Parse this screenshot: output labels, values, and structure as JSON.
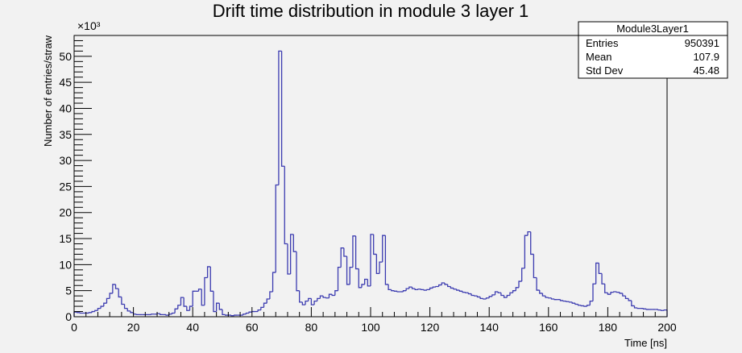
{
  "chart_data": {
    "type": "bar",
    "title": "Drift time distribution in module 3 layer 1",
    "xlabel": "Time [ns]",
    "ylabel": "Number of entries/straw",
    "y_multiplier_label": "×10³",
    "xlim": [
      0,
      200
    ],
    "ylim": [
      0,
      54
    ],
    "x_ticks": [
      0,
      20,
      40,
      60,
      80,
      100,
      120,
      140,
      160,
      180,
      200
    ],
    "y_ticks": [
      0,
      5,
      10,
      15,
      20,
      25,
      30,
      35,
      40,
      45,
      50
    ],
    "bin_width": 1,
    "bin_start": 0,
    "legend_position": "top-right",
    "series": [
      {
        "values": [
          0.9,
          0.8,
          0.7,
          0.7,
          0.7,
          0.8,
          1.0,
          1.2,
          1.6,
          2.0,
          2.6,
          3.5,
          4.5,
          6.2,
          5.4,
          3.8,
          2.4,
          1.6,
          1.1,
          0.8,
          0.5,
          0.4,
          0.4,
          0.4,
          0.4,
          0.4,
          0.5,
          0.5,
          0.6,
          0.4,
          0.4,
          0.3,
          0.5,
          0.7,
          1.5,
          2.2,
          3.7,
          2.0,
          1.2,
          2.0,
          4.9,
          4.9,
          5.3,
          2.2,
          7.5,
          9.6,
          4.9,
          1.0,
          2.6,
          1.4,
          0.4,
          0.3,
          0.3,
          0.2,
          0.3,
          0.3,
          0.3,
          0.5,
          0.7,
          0.9,
          1.0,
          1.0,
          1.3,
          1.8,
          2.6,
          3.4,
          4.8,
          8.5,
          25.3,
          51.0,
          28.9,
          14.0,
          8.2,
          15.8,
          12.5,
          5.0,
          2.8,
          2.3,
          3.0,
          3.5,
          2.3,
          3.0,
          3.5,
          4.0,
          3.7,
          3.6,
          4.3,
          4.1,
          5.0,
          9.5,
          13.2,
          11.6,
          6.2,
          9.5,
          15.5,
          9.2,
          5.6,
          6.2,
          7.2,
          5.9,
          15.8,
          12.0,
          8.3,
          10.5,
          15.6,
          6.2,
          5.2,
          5.0,
          4.9,
          4.8,
          4.8,
          5.0,
          5.4,
          5.7,
          5.4,
          5.2,
          5.3,
          5.2,
          5.1,
          5.2,
          5.5,
          5.7,
          5.8,
          6.1,
          6.5,
          6.2,
          5.8,
          5.5,
          5.3,
          5.1,
          4.9,
          4.7,
          4.6,
          4.4,
          4.1,
          4.0,
          3.8,
          3.5,
          3.4,
          3.6,
          3.9,
          4.2,
          4.8,
          4.6,
          4.1,
          3.7,
          4.1,
          4.6,
          5.0,
          5.6,
          6.8,
          9.3,
          15.6,
          16.3,
          12.0,
          7.5,
          5.1,
          4.5,
          4.0,
          3.7,
          3.6,
          3.4,
          3.3,
          3.3,
          3.1,
          3.0,
          2.9,
          2.8,
          2.6,
          2.4,
          2.2,
          2.1,
          2.0,
          2.2,
          3.0,
          6.3,
          10.3,
          8.3,
          6.3,
          4.6,
          4.3,
          4.7,
          4.8,
          4.7,
          4.5,
          4.0,
          3.5,
          3.1,
          2.1,
          1.7,
          1.6,
          1.6,
          1.5,
          1.4,
          1.4,
          1.4,
          1.4,
          1.3,
          1.2,
          1.3
        ]
      }
    ],
    "stats_box": {
      "name": "Module3Layer1",
      "rows": [
        {
          "label": "Entries",
          "value": "950391"
        },
        {
          "label": "Mean",
          "value": "107.9"
        },
        {
          "label": "Std Dev",
          "value": "45.48"
        }
      ]
    },
    "colors": {
      "line": "#3b3bb0",
      "axis": "#000000",
      "background": "#f2f2f2",
      "stats_bg": "#ffffff"
    }
  }
}
